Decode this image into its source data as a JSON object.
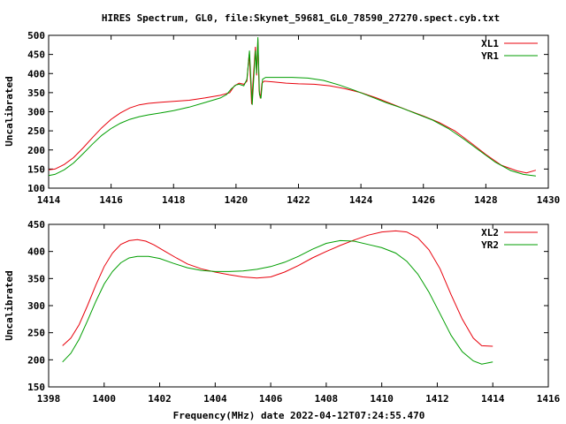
{
  "title": "HIRES Spectrum, GL0, file:Skynet_59681_GL0_78590_27270.spect.cyb.txt",
  "xlabel": "Frequency(MHz) date 2022-04-12T07:24:55.470",
  "colors": {
    "red": "#e8000b",
    "green": "#009e00"
  },
  "chart_data": [
    {
      "type": "line",
      "ylabel": "Uncalibrated",
      "xlim": [
        1414,
        1430
      ],
      "ylim": [
        100,
        500
      ],
      "xticks": [
        1414,
        1416,
        1418,
        1420,
        1422,
        1424,
        1426,
        1428,
        1430
      ],
      "yticks": [
        100,
        150,
        200,
        250,
        300,
        350,
        400,
        450,
        500
      ],
      "legend_position": "top-right",
      "series": [
        {
          "name": "XL1",
          "color": "#e8000b",
          "points": [
            [
              1414.0,
              148
            ],
            [
              1414.2,
              150
            ],
            [
              1414.5,
              162
            ],
            [
              1414.8,
              180
            ],
            [
              1415.1,
              205
            ],
            [
              1415.4,
              232
            ],
            [
              1415.7,
              258
            ],
            [
              1416.0,
              280
            ],
            [
              1416.3,
              297
            ],
            [
              1416.6,
              310
            ],
            [
              1416.9,
              318
            ],
            [
              1417.2,
              322
            ],
            [
              1417.6,
              325
            ],
            [
              1418.0,
              327
            ],
            [
              1418.5,
              330
            ],
            [
              1419.0,
              336
            ],
            [
              1419.5,
              343
            ],
            [
              1419.8,
              350
            ],
            [
              1419.95,
              368
            ],
            [
              1420.1,
              375
            ],
            [
              1420.25,
              372
            ],
            [
              1420.35,
              380
            ],
            [
              1420.42,
              450
            ],
            [
              1420.47,
              375
            ],
            [
              1420.5,
              320
            ],
            [
              1420.55,
              385
            ],
            [
              1420.62,
              470
            ],
            [
              1420.66,
              395
            ],
            [
              1420.7,
              490
            ],
            [
              1420.74,
              355
            ],
            [
              1420.78,
              335
            ],
            [
              1420.83,
              375
            ],
            [
              1420.9,
              380
            ],
            [
              1421.2,
              378
            ],
            [
              1421.6,
              375
            ],
            [
              1422.0,
              373
            ],
            [
              1422.5,
              372
            ],
            [
              1423.0,
              368
            ],
            [
              1423.5,
              360
            ],
            [
              1424.0,
              350
            ],
            [
              1424.5,
              336
            ],
            [
              1425.0,
              320
            ],
            [
              1425.5,
              304
            ],
            [
              1426.0,
              289
            ],
            [
              1426.5,
              272
            ],
            [
              1427.0,
              250
            ],
            [
              1427.5,
              220
            ],
            [
              1428.0,
              188
            ],
            [
              1428.5,
              160
            ],
            [
              1429.0,
              145
            ],
            [
              1429.3,
              140
            ],
            [
              1429.6,
              147
            ]
          ]
        },
        {
          "name": "YR1",
          "color": "#009e00",
          "points": [
            [
              1414.0,
              133
            ],
            [
              1414.2,
              136
            ],
            [
              1414.5,
              148
            ],
            [
              1414.8,
              166
            ],
            [
              1415.1,
              190
            ],
            [
              1415.4,
              215
            ],
            [
              1415.7,
              238
            ],
            [
              1416.0,
              256
            ],
            [
              1416.3,
              270
            ],
            [
              1416.6,
              280
            ],
            [
              1416.9,
              287
            ],
            [
              1417.2,
              292
            ],
            [
              1417.6,
              297
            ],
            [
              1418.0,
              303
            ],
            [
              1418.5,
              312
            ],
            [
              1419.0,
              324
            ],
            [
              1419.5,
              336
            ],
            [
              1419.7,
              345
            ],
            [
              1419.85,
              360
            ],
            [
              1420.0,
              370
            ],
            [
              1420.1,
              372
            ],
            [
              1420.25,
              368
            ],
            [
              1420.35,
              385
            ],
            [
              1420.43,
              460
            ],
            [
              1420.48,
              380
            ],
            [
              1420.52,
              318
            ],
            [
              1420.57,
              390
            ],
            [
              1420.62,
              460
            ],
            [
              1420.66,
              400
            ],
            [
              1420.7,
              495
            ],
            [
              1420.75,
              345
            ],
            [
              1420.8,
              335
            ],
            [
              1420.85,
              385
            ],
            [
              1420.95,
              390
            ],
            [
              1421.3,
              390
            ],
            [
              1421.8,
              390
            ],
            [
              1422.3,
              388
            ],
            [
              1422.8,
              382
            ],
            [
              1423.3,
              370
            ],
            [
              1423.8,
              356
            ],
            [
              1424.3,
              340
            ],
            [
              1424.8,
              324
            ],
            [
              1425.3,
              310
            ],
            [
              1425.8,
              294
            ],
            [
              1426.3,
              278
            ],
            [
              1426.8,
              256
            ],
            [
              1427.3,
              228
            ],
            [
              1427.8,
              198
            ],
            [
              1428.3,
              168
            ],
            [
              1428.8,
              146
            ],
            [
              1429.2,
              136
            ],
            [
              1429.6,
              132
            ]
          ]
        }
      ]
    },
    {
      "type": "line",
      "ylabel": "Uncalibrated",
      "xlim": [
        1398,
        1416
      ],
      "ylim": [
        150,
        450
      ],
      "xticks": [
        1398,
        1400,
        1402,
        1404,
        1406,
        1408,
        1410,
        1412,
        1414,
        1416
      ],
      "yticks": [
        150,
        200,
        250,
        300,
        350,
        400,
        450
      ],
      "legend_position": "top-right",
      "series": [
        {
          "name": "XL2",
          "color": "#e8000b",
          "points": [
            [
              1398.5,
              226
            ],
            [
              1398.8,
              240
            ],
            [
              1399.1,
              265
            ],
            [
              1399.4,
              300
            ],
            [
              1399.7,
              338
            ],
            [
              1400.0,
              372
            ],
            [
              1400.3,
              397
            ],
            [
              1400.6,
              413
            ],
            [
              1400.9,
              420
            ],
            [
              1401.2,
              422
            ],
            [
              1401.5,
              419
            ],
            [
              1401.8,
              412
            ],
            [
              1402.2,
              400
            ],
            [
              1402.6,
              388
            ],
            [
              1403.0,
              377
            ],
            [
              1403.5,
              368
            ],
            [
              1404.0,
              362
            ],
            [
              1404.5,
              357
            ],
            [
              1405.0,
              353
            ],
            [
              1405.5,
              351
            ],
            [
              1406.0,
              353
            ],
            [
              1406.5,
              362
            ],
            [
              1407.0,
              374
            ],
            [
              1407.5,
              388
            ],
            [
              1408.0,
              400
            ],
            [
              1408.5,
              411
            ],
            [
              1409.0,
              421
            ],
            [
              1409.5,
              430
            ],
            [
              1410.0,
              436
            ],
            [
              1410.5,
              438
            ],
            [
              1410.9,
              436
            ],
            [
              1411.3,
              425
            ],
            [
              1411.7,
              403
            ],
            [
              1412.1,
              368
            ],
            [
              1412.5,
              320
            ],
            [
              1412.9,
              275
            ],
            [
              1413.3,
              240
            ],
            [
              1413.6,
              226
            ],
            [
              1414.0,
              225
            ]
          ]
        },
        {
          "name": "YR2",
          "color": "#009e00",
          "points": [
            [
              1398.5,
              196
            ],
            [
              1398.8,
              212
            ],
            [
              1399.1,
              238
            ],
            [
              1399.4,
              272
            ],
            [
              1399.7,
              308
            ],
            [
              1400.0,
              340
            ],
            [
              1400.3,
              363
            ],
            [
              1400.6,
              379
            ],
            [
              1400.9,
              388
            ],
            [
              1401.2,
              391
            ],
            [
              1401.6,
              391
            ],
            [
              1402.0,
              387
            ],
            [
              1402.5,
              378
            ],
            [
              1403.0,
              370
            ],
            [
              1403.5,
              365
            ],
            [
              1404.0,
              363
            ],
            [
              1404.5,
              363
            ],
            [
              1405.0,
              364
            ],
            [
              1405.5,
              367
            ],
            [
              1406.0,
              372
            ],
            [
              1406.5,
              380
            ],
            [
              1407.0,
              391
            ],
            [
              1407.5,
              404
            ],
            [
              1408.0,
              415
            ],
            [
              1408.5,
              420
            ],
            [
              1409.0,
              419
            ],
            [
              1409.5,
              413
            ],
            [
              1410.0,
              407
            ],
            [
              1410.5,
              397
            ],
            [
              1410.9,
              382
            ],
            [
              1411.3,
              358
            ],
            [
              1411.7,
              325
            ],
            [
              1412.1,
              285
            ],
            [
              1412.5,
              245
            ],
            [
              1412.9,
              215
            ],
            [
              1413.3,
              198
            ],
            [
              1413.6,
              192
            ],
            [
              1414.0,
              196
            ]
          ]
        }
      ]
    }
  ]
}
